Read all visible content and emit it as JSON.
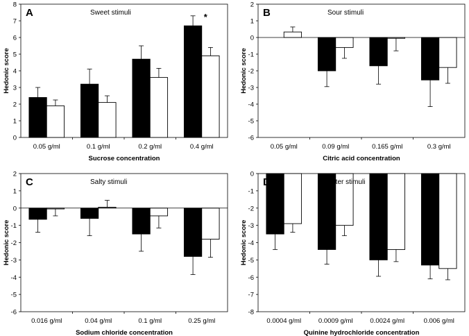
{
  "chart_data": [
    {
      "type": "bar",
      "panel": "A",
      "title": "Sweet stimuli",
      "xlabel": "Sucrose concentration",
      "ylabel": "Hedonic score",
      "ylim": [
        0,
        8
      ],
      "yticks": [
        0,
        1,
        2,
        3,
        4,
        5,
        6,
        7,
        8
      ],
      "categories": [
        "0.05 g/ml",
        "0.1 g/ml",
        "0.2 g/ml",
        "0.4 g/ml"
      ],
      "series": [
        {
          "name": "black",
          "color": "#000000",
          "values": [
            2.4,
            3.2,
            4.7,
            6.7
          ],
          "errors": [
            0.6,
            0.9,
            0.8,
            0.6
          ]
        },
        {
          "name": "white",
          "color": "#ffffff",
          "values": [
            1.9,
            2.1,
            3.6,
            4.9
          ],
          "errors": [
            0.35,
            0.4,
            0.55,
            0.5
          ]
        }
      ],
      "annotations": [
        {
          "text": "*",
          "category_index": 3
        }
      ]
    },
    {
      "type": "bar",
      "panel": "B",
      "title": "Sour stimuli",
      "xlabel": "Citric acid concentration",
      "ylabel": "Hedonic score",
      "ylim": [
        -6,
        2
      ],
      "yticks": [
        -6,
        -5,
        -4,
        -3,
        -2,
        -1,
        0,
        1,
        2
      ],
      "categories": [
        "0.05 g/ml",
        "0.09 g/ml",
        "0.165 g/ml",
        "0.3 g/ml"
      ],
      "series": [
        {
          "name": "black",
          "color": "#000000",
          "values": [
            0,
            -2.0,
            -1.7,
            -2.55
          ],
          "errors": [
            0,
            0.95,
            1.1,
            1.6
          ]
        },
        {
          "name": "white",
          "color": "#ffffff",
          "values": [
            0.33,
            -0.6,
            -0.05,
            -1.8
          ],
          "errors": [
            0.3,
            0.65,
            0.75,
            0.95
          ]
        }
      ],
      "annotations": []
    },
    {
      "type": "bar",
      "panel": "C",
      "title": "Salty stimuli",
      "xlabel": "Sodium chloride concentration",
      "ylabel": "Hedonic score",
      "ylim": [
        -6,
        2
      ],
      "yticks": [
        -6,
        -5,
        -4,
        -3,
        -2,
        -1,
        0,
        1,
        2
      ],
      "categories": [
        "0.016 g/ml",
        "0.04 g/ml",
        "0.1 g/ml",
        "0.25 g/ml"
      ],
      "series": [
        {
          "name": "black",
          "color": "#000000",
          "values": [
            -0.65,
            -0.6,
            -1.5,
            -2.8
          ],
          "errors": [
            0.75,
            1.0,
            1.0,
            1.05
          ]
        },
        {
          "name": "white",
          "color": "#ffffff",
          "values": [
            -0.05,
            0.05,
            -0.45,
            -1.8
          ],
          "errors": [
            0.4,
            0.4,
            0.7,
            1.05
          ]
        }
      ],
      "annotations": []
    },
    {
      "type": "bar",
      "panel": "D",
      "title": "Bitter stimuli",
      "xlabel": "Quinine hydrochloride concentration",
      "ylabel": "Hedonic score",
      "ylim": [
        -8,
        0
      ],
      "yticks": [
        -8,
        -7,
        -6,
        -5,
        -4,
        -3,
        -2,
        -1,
        0
      ],
      "categories": [
        "0.0004 g/ml",
        "0.0009 g/ml",
        "0.0024 g/ml",
        "0.006 g/ml"
      ],
      "series": [
        {
          "name": "black",
          "color": "#000000",
          "values": [
            -3.5,
            -4.4,
            -5.0,
            -5.3
          ],
          "errors": [
            0.9,
            0.85,
            0.95,
            0.8
          ]
        },
        {
          "name": "white",
          "color": "#ffffff",
          "values": [
            -2.9,
            -3.0,
            -4.4,
            -5.5
          ],
          "errors": [
            0.5,
            0.6,
            0.7,
            0.65
          ]
        }
      ],
      "annotations": []
    }
  ]
}
